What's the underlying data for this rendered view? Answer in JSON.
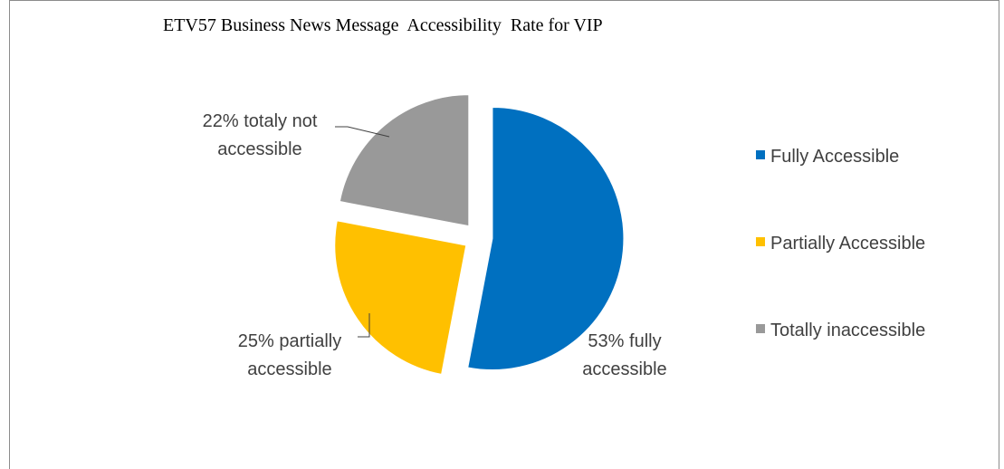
{
  "chart_data": {
    "type": "pie",
    "title": "ETV57 Business News Message  Accessibility  Rate for VIP",
    "slices": [
      {
        "name": "Fully Accessible",
        "value": 53,
        "color": "#0070C0",
        "label_lines": [
          "53% fully",
          "accessible"
        ]
      },
      {
        "name": "Partially Accessible",
        "value": 25,
        "color": "#FFC000",
        "label_lines": [
          "25% partially",
          "accessible"
        ]
      },
      {
        "name": "Totally inaccessible",
        "value": 22,
        "color": "#999999",
        "label_lines": [
          "22% totaly not",
          "accessible"
        ]
      }
    ],
    "legend_position": "right",
    "exploded": true
  }
}
